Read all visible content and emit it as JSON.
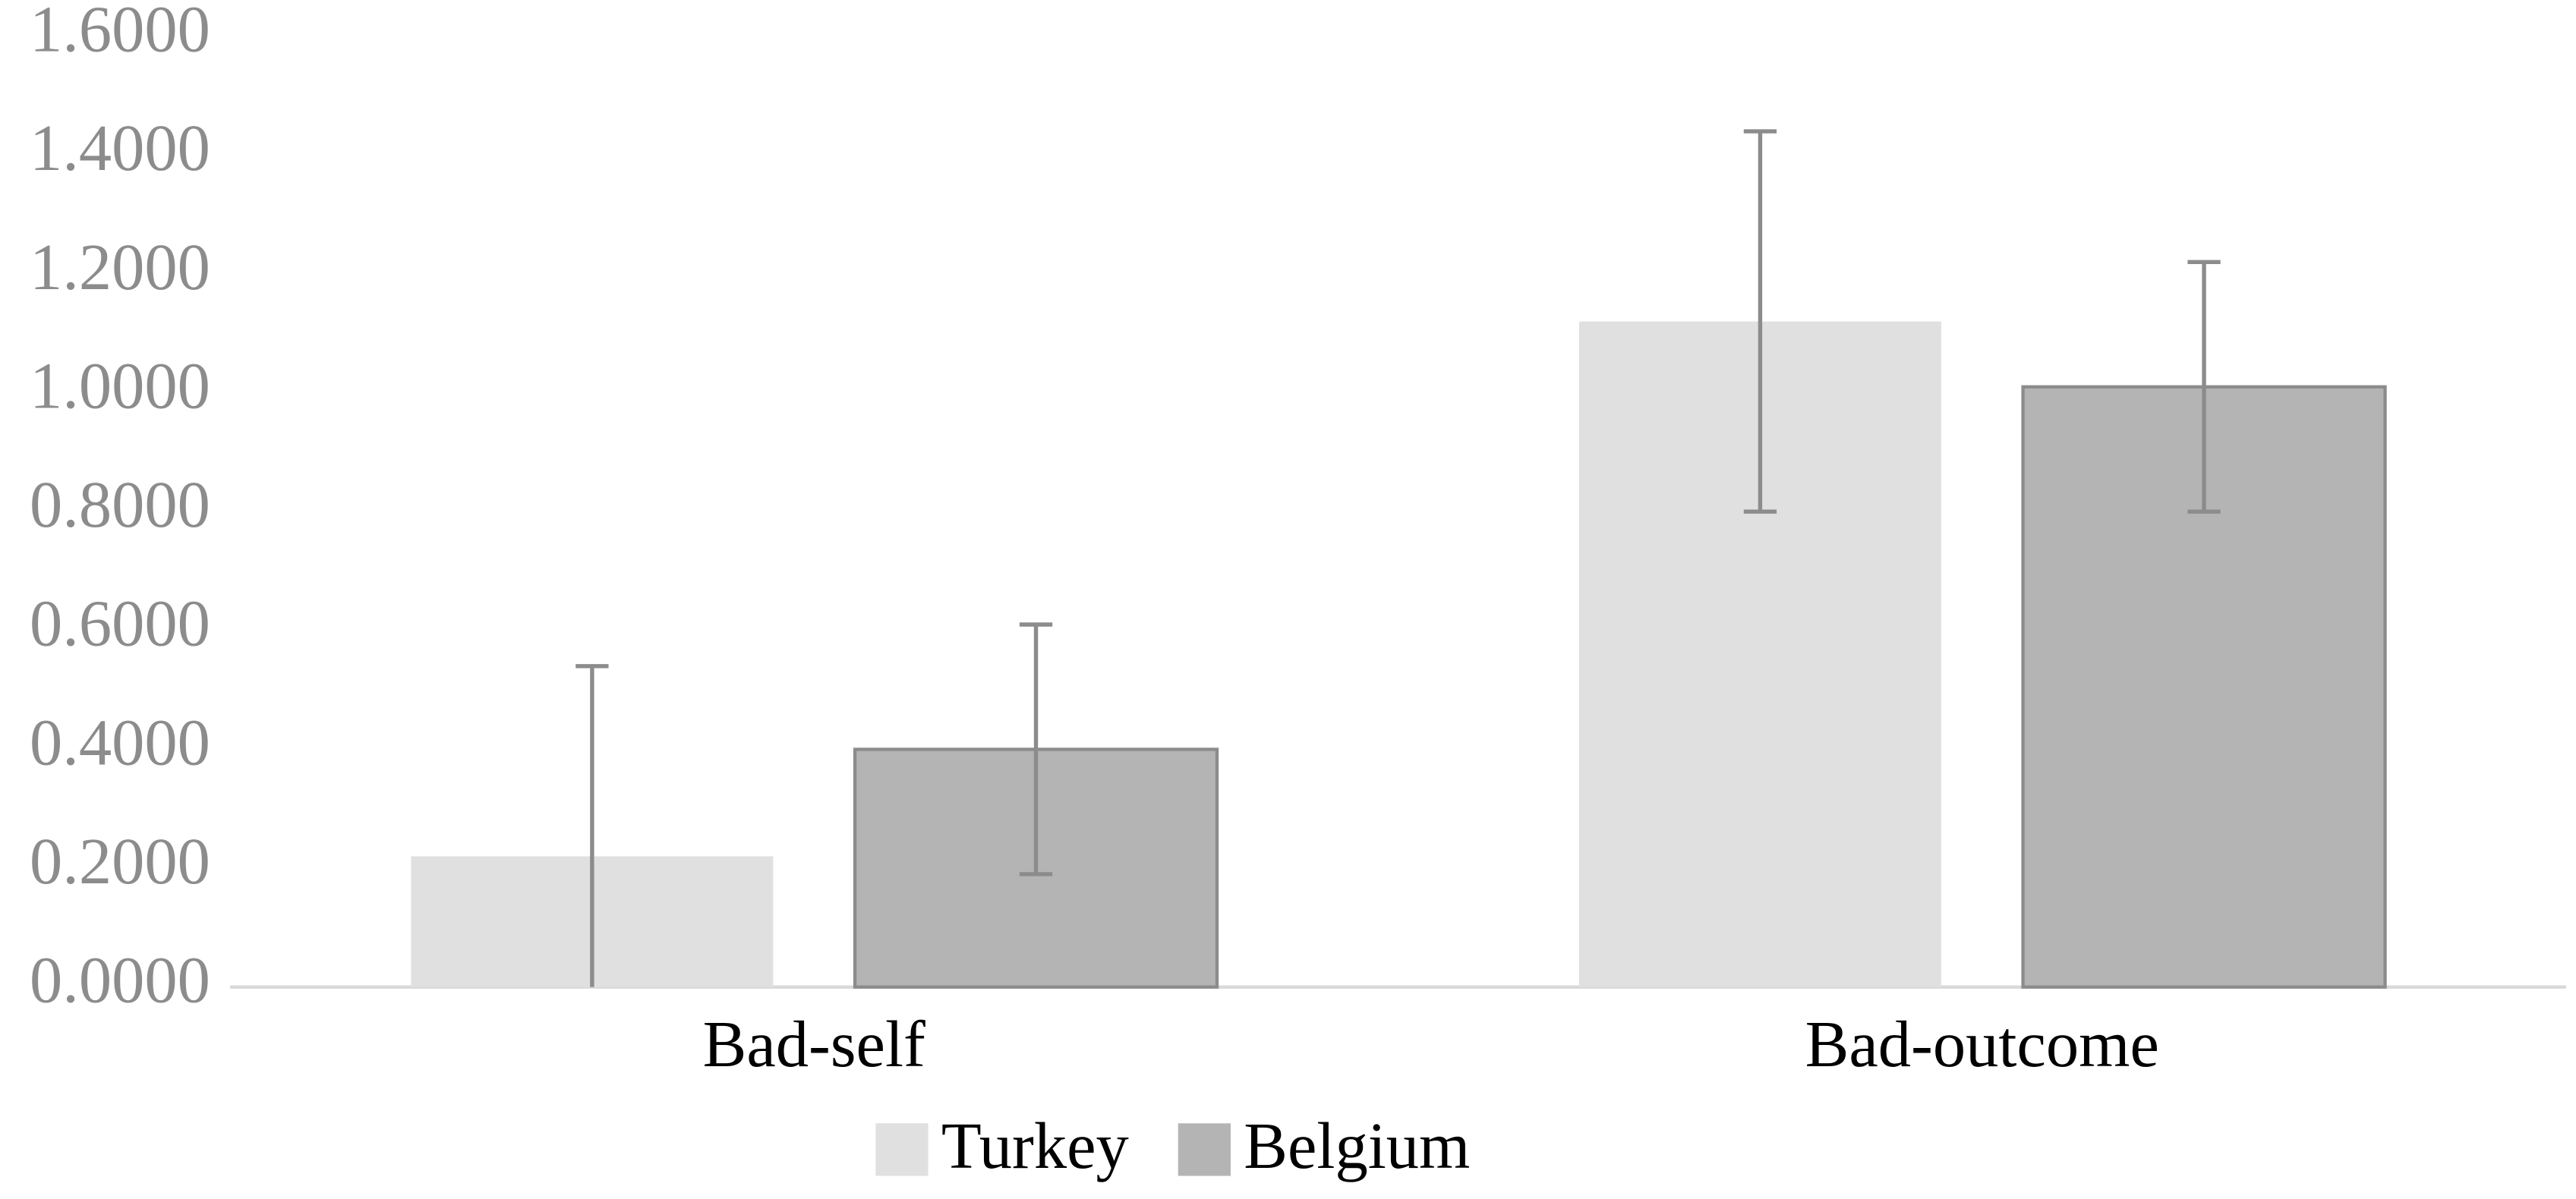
{
  "chart_data": {
    "type": "bar",
    "categories": [
      "Bad-self",
      "Bad-outcome"
    ],
    "series": [
      {
        "name": "Turkey",
        "color": "#e0e0e0",
        "values": [
          0.22,
          1.12
        ],
        "errors": [
          0.32,
          0.32
        ]
      },
      {
        "name": "Belgium",
        "color": "#b4b4b4",
        "edge_color": "#8c8c8c",
        "values": [
          0.4,
          1.01
        ],
        "errors": [
          0.21,
          0.21
        ]
      }
    ],
    "error_color": "#8c8c8c",
    "ylim": [
      0,
      1.6
    ],
    "yticks": [
      {
        "value": 0,
        "label": "0.0000"
      },
      {
        "value": 0.2,
        "label": "0.2000"
      },
      {
        "value": 0.4,
        "label": "0.4000"
      },
      {
        "value": 0.6,
        "label": "0.6000"
      },
      {
        "value": 0.8,
        "label": "0.8000"
      },
      {
        "value": 1.0,
        "label": "1.0000"
      },
      {
        "value": 1.2,
        "label": "1.2000"
      },
      {
        "value": 1.4,
        "label": "1.4000"
      },
      {
        "value": 1.6,
        "label": "1.6000"
      }
    ],
    "legend": "bottom"
  }
}
